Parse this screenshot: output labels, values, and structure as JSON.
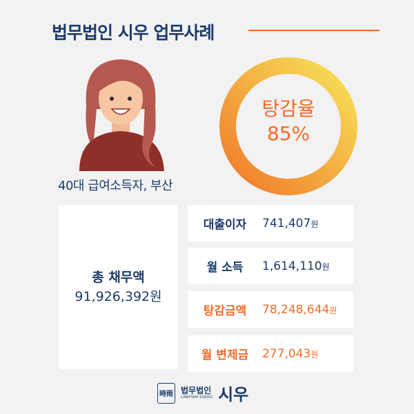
{
  "header": {
    "title": "법무법인 시우 업무사례"
  },
  "profile": {
    "caption": "40대 급여소득자, 부산"
  },
  "donut": {
    "label": "탕감율",
    "value_text": "85%",
    "percent": 85,
    "colors": [
      "#f7e35a",
      "#f07a2a"
    ]
  },
  "total": {
    "label": "총 채무액",
    "value": "91,926,392원"
  },
  "rows": [
    {
      "label": "대출이자",
      "value": "741,407",
      "unit": "원"
    },
    {
      "label": "월 소득",
      "value": "1,614,110",
      "unit": "원"
    },
    {
      "label": "탕감금액",
      "value": "78,248,644",
      "unit": "원"
    },
    {
      "label": "월 변제금",
      "value": "277,043",
      "unit": "원"
    }
  ],
  "footer": {
    "logo_mark": "時雨",
    "brand_small": "법무법인",
    "brand_sub": "LAWFIRM SIWOO",
    "brand_big": "시우"
  },
  "colors": {
    "navy": "#1d3b6c",
    "orange": "#f26b2a",
    "background": "#f2f2f2"
  }
}
